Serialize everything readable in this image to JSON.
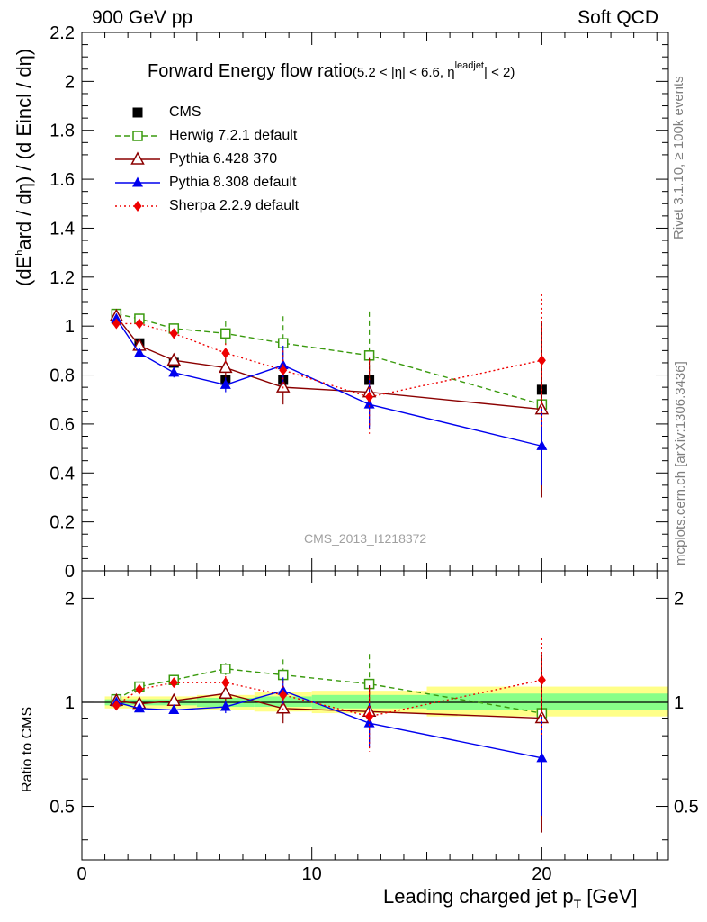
{
  "header": {
    "left": "900 GeV pp",
    "right": "Soft QCD"
  },
  "side_labels": {
    "rivet": "Rivet 3.1.10, ≥ 100k events",
    "mcplots": "mcplots.cern.ch [arXiv:1306.3436]"
  },
  "plot_title": {
    "main": "Forward Energy flow ratio",
    "cond_a": "(5.2 < |η| < 6.6, η",
    "cond_sup": "leadjet",
    "cond_b": "| < 2)"
  },
  "y_label": {
    "a": "(dE",
    "sup": "h",
    "b": "ard / dη) / (d Eincl / dη)"
  },
  "ratio_label": "Ratio to CMS",
  "x_label": {
    "a": "Leading charged jet p",
    "sub": "T",
    "b": " [GeV]"
  },
  "watermark": "CMS_2013_I1218372",
  "colors": {
    "cms": "#000000",
    "herwig": "#3a9a0e",
    "pythia6": "#8b0000",
    "pythia8": "#0000ee",
    "sherpa": "#ee0000",
    "band_inner": "#88ff88",
    "band_outer": "#ffff88"
  },
  "chart_data": [
    {
      "type": "scatter",
      "panel": "main",
      "xlim": [
        0,
        25.5
      ],
      "ylim": [
        0,
        2.2
      ],
      "yticks": [
        0,
        0.2,
        0.4,
        0.6,
        0.8,
        1,
        1.2,
        1.4,
        1.6,
        1.8,
        2,
        2.2
      ],
      "ytick_labels": [
        "0",
        "0.2",
        "0.4",
        "0.6",
        "0.8",
        "1",
        "1.2",
        "1.4",
        "1.6",
        "1.8",
        "2",
        "2.2"
      ],
      "xticks": [
        0,
        10,
        20
      ],
      "xtick_labels": [
        "0",
        "10",
        "20"
      ],
      "x": [
        1.5,
        2.5,
        4.0,
        6.25,
        8.75,
        12.5,
        20.0
      ],
      "legend_position": "top-left",
      "series": [
        {
          "name": "CMS",
          "key": "cms",
          "marker": "square-filled",
          "line": "none",
          "values": [
            1.03,
            0.93,
            0.85,
            0.78,
            0.78,
            0.78,
            0.74
          ],
          "err": [
            0.01,
            0.01,
            0.01,
            0.01,
            0.01,
            0.01,
            0.01
          ]
        },
        {
          "name": "Herwig 7.2.1 default",
          "key": "herwig",
          "marker": "square-open",
          "line": "dashed",
          "values": [
            1.05,
            1.03,
            0.99,
            0.97,
            0.93,
            0.88,
            0.68
          ],
          "err": [
            0.01,
            0.01,
            0.02,
            0.05,
            0.11,
            0.18,
            0.3
          ]
        },
        {
          "name": "Pythia 6.428 370",
          "key": "pythia6",
          "marker": "triangle-open",
          "line": "solid",
          "values": [
            1.04,
            0.92,
            0.86,
            0.83,
            0.75,
            0.73,
            0.66
          ],
          "err": [
            0.01,
            0.01,
            0.02,
            0.04,
            0.07,
            0.14,
            0.36
          ]
        },
        {
          "name": "Pythia 8.308 default",
          "key": "pythia8",
          "marker": "triangle-filled",
          "line": "solid",
          "values": [
            1.03,
            0.89,
            0.81,
            0.76,
            0.84,
            0.68,
            0.51
          ],
          "err": [
            0.01,
            0.01,
            0.02,
            0.03,
            0.08,
            0.1,
            0.16
          ]
        },
        {
          "name": "Sherpa 2.2.9 default",
          "key": "sherpa",
          "marker": "diamond-filled",
          "line": "dotted",
          "values": [
            1.01,
            1.01,
            0.97,
            0.89,
            0.82,
            0.71,
            0.86
          ],
          "err": [
            0.01,
            0.01,
            0.02,
            0.04,
            0.08,
            0.15,
            0.27
          ]
        }
      ]
    },
    {
      "type": "scatter",
      "panel": "ratio",
      "xlim": [
        0,
        25.5
      ],
      "ylim": [
        0.35,
        2.4
      ],
      "yscale": "log",
      "yticks": [
        0.5,
        1,
        2
      ],
      "ytick_labels": [
        "0.5",
        "1",
        "2"
      ],
      "xticks": [
        0,
        10,
        20
      ],
      "xtick_labels": [
        "0",
        "10",
        "20"
      ],
      "x": [
        1.5,
        2.5,
        4.0,
        6.25,
        8.75,
        12.5,
        20.0
      ],
      "bands": [
        {
          "x_from": 1.0,
          "x_to": 5.0,
          "inner": [
            0.98,
            1.02
          ],
          "outer": [
            0.96,
            1.04
          ]
        },
        {
          "x_from": 5.0,
          "x_to": 7.5,
          "inner": [
            0.97,
            1.03
          ],
          "outer": [
            0.95,
            1.05
          ]
        },
        {
          "x_from": 7.5,
          "x_to": 10.0,
          "inner": [
            0.97,
            1.04
          ],
          "outer": [
            0.94,
            1.07
          ]
        },
        {
          "x_from": 10.0,
          "x_to": 15.0,
          "inner": [
            0.96,
            1.05
          ],
          "outer": [
            0.93,
            1.08
          ]
        },
        {
          "x_from": 15.0,
          "x_to": 25.5,
          "inner": [
            0.95,
            1.06
          ],
          "outer": [
            0.91,
            1.11
          ]
        }
      ],
      "series": [
        {
          "name": "Herwig 7.2.1 default",
          "key": "herwig",
          "marker": "square-open",
          "line": "dashed",
          "values": [
            1.02,
            1.11,
            1.16,
            1.25,
            1.2,
            1.13,
            0.93
          ],
          "err": [
            0.01,
            0.01,
            0.02,
            0.05,
            0.13,
            0.25,
            0.4
          ]
        },
        {
          "name": "Pythia 6.428 370",
          "key": "pythia6",
          "marker": "triangle-open",
          "line": "solid",
          "values": [
            1.01,
            0.99,
            1.01,
            1.06,
            0.96,
            0.94,
            0.9
          ],
          "err": [
            0.01,
            0.01,
            0.02,
            0.05,
            0.09,
            0.18,
            0.48
          ]
        },
        {
          "name": "Pythia 8.308 default",
          "key": "pythia8",
          "marker": "triangle-filled",
          "line": "solid",
          "values": [
            1.0,
            0.96,
            0.95,
            0.97,
            1.08,
            0.87,
            0.69
          ],
          "err": [
            0.01,
            0.01,
            0.02,
            0.04,
            0.1,
            0.13,
            0.22
          ]
        },
        {
          "name": "Sherpa 2.2.9 default",
          "key": "sherpa",
          "marker": "diamond-filled",
          "line": "dotted",
          "values": [
            0.98,
            1.09,
            1.14,
            1.14,
            1.05,
            0.91,
            1.16
          ],
          "err": [
            0.01,
            0.01,
            0.02,
            0.05,
            0.1,
            0.19,
            0.37
          ]
        }
      ]
    }
  ]
}
